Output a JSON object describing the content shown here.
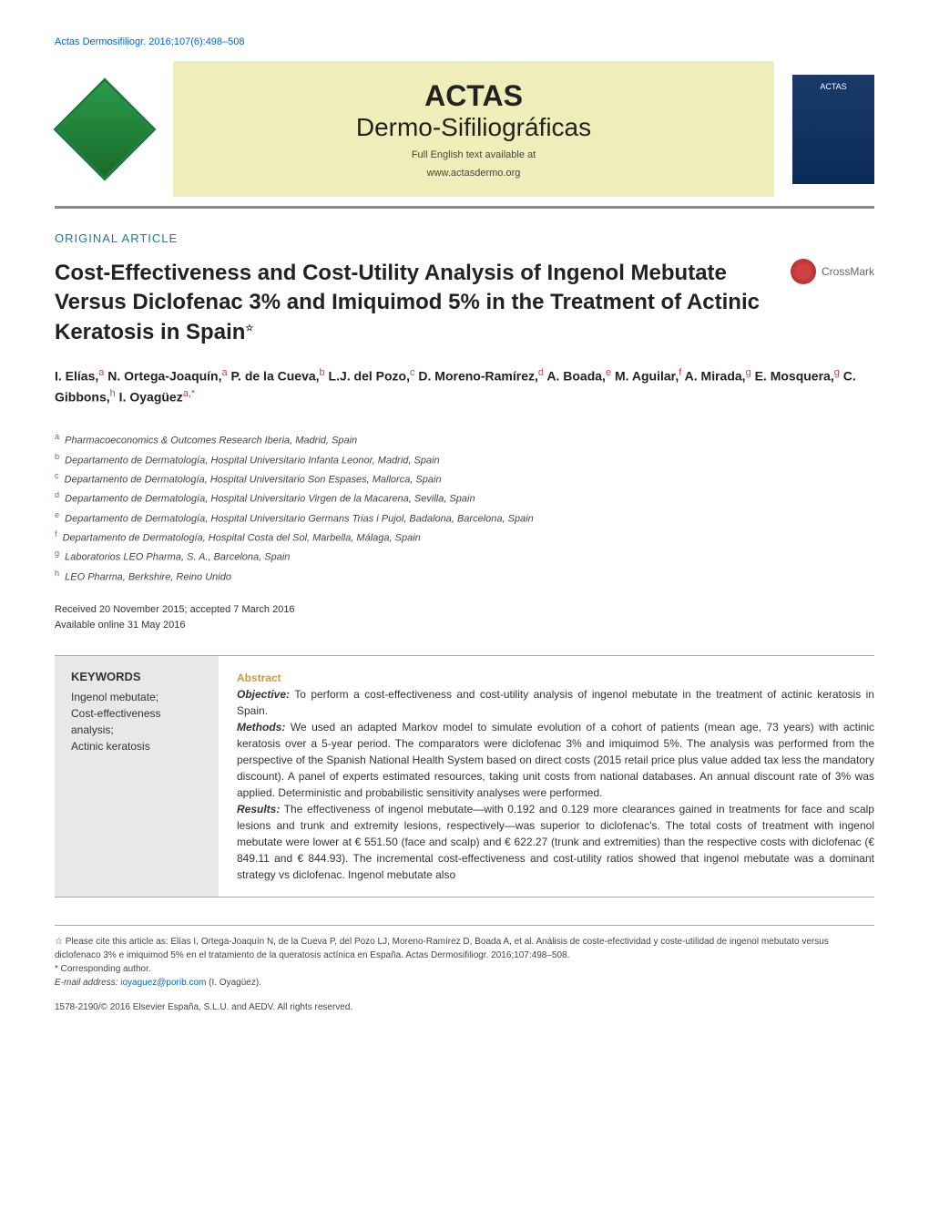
{
  "citation_link": "Actas Dermosifiliogr. 2016;107(6):498–508",
  "journal": {
    "title_line1": "ACTAS",
    "title_line2": "Dermo-Sifiliográficas",
    "note_line1": "Full English text available at",
    "note_line2": "www.actasdermo.org",
    "cover_label": "ACTAS"
  },
  "section_label": "ORIGINAL ARTICLE",
  "article_title": "Cost-Effectiveness and Cost-Utility Analysis of Ingenol Mebutate Versus Diclofenac 3% and Imiquimod 5% in the Treatment of Actinic Keratosis in Spain",
  "title_star": "☆",
  "crossmark_label": "CrossMark",
  "authors_html": "I. Elías,<sup>a</sup> N. Ortega-Joaquín,<sup>a</sup> P. de la Cueva,<sup>b</sup> L.J. del Pozo,<sup>c</sup> D. Moreno-Ramírez,<sup>d</sup> A. Boada,<sup>e</sup> M. Aguilar,<sup>f</sup> A. Mirada,<sup>g</sup> E. Mosquera,<sup>g</sup> C. Gibbons,<sup>h</sup> I. Oyagüez<sup>a,*</sup>",
  "affiliations": [
    {
      "sup": "a",
      "text": "Pharmacoeconomics & Outcomes Research Iberia, Madrid, Spain"
    },
    {
      "sup": "b",
      "text": "Departamento de Dermatología, Hospital Universitario Infanta Leonor, Madrid, Spain"
    },
    {
      "sup": "c",
      "text": "Departamento de Dermatología, Hospital Universitario Son Espases, Mallorca, Spain"
    },
    {
      "sup": "d",
      "text": "Departamento de Dermatología, Hospital Universitario Virgen de la Macarena, Sevilla, Spain"
    },
    {
      "sup": "e",
      "text": "Departamento de Dermatología, Hospital Universitario Germans Trias i Pujol, Badalona, Barcelona, Spain"
    },
    {
      "sup": "f",
      "text": "Departamento de Dermatología, Hospital Costa del Sol, Marbella, Málaga, Spain"
    },
    {
      "sup": "g",
      "text": "Laboratorios LEO Pharma, S. A., Barcelona, Spain"
    },
    {
      "sup": "h",
      "text": "LEO Pharma, Berkshire, Reino Unido"
    }
  ],
  "dates": {
    "received_accepted": "Received 20 November 2015; accepted 7 March 2016",
    "online": "Available online 31 May 2016"
  },
  "keywords": {
    "heading": "KEYWORDS",
    "list": "Ingenol mebutate;\nCost-effectiveness analysis;\nActinic keratosis"
  },
  "abstract": {
    "label": "Abstract",
    "objective_label": "Objective:",
    "objective_text": "To perform a cost-effectiveness and cost-utility analysis of ingenol mebutate in the treatment of actinic keratosis in Spain.",
    "methods_label": "Methods:",
    "methods_text": "We used an adapted Markov model to simulate evolution of a cohort of patients (mean age, 73 years) with actinic keratosis over a 5-year period. The comparators were diclofenac 3% and imiquimod 5%. The analysis was performed from the perspective of the Spanish National Health System based on direct costs (2015 retail price plus value added tax less the mandatory discount). A panel of experts estimated resources, taking unit costs from national databases. An annual discount rate of 3% was applied. Deterministic and probabilistic sensitivity analyses were performed.",
    "results_label": "Results:",
    "results_text": "The effectiveness of ingenol mebutate—with 0.192 and 0.129 more clearances gained in treatments for face and scalp lesions and trunk and extremity lesions, respectively—was superior to diclofenac's. The total costs of treatment with ingenol mebutate were lower at € 551.50 (face and scalp) and € 622.27 (trunk and extremities) than the respective costs with diclofenac (€ 849.11 and € 844.93). The incremental cost-effectiveness and cost-utility ratios showed that ingenol mebutate was a dominant strategy vs diclofenac. Ingenol mebutate also"
  },
  "footer": {
    "citation_note": "☆ Please cite this article as: Elías I, Ortega-Joaquín N, de la Cueva P, del Pozo LJ, Moreno-Ramírez D, Boada A, et al. Análisis de coste-efectividad y coste-utilidad de ingenol mebutato versus diclofenaco 3% e imiquimod 5% en el tratamiento de la queratosis actínica en España. Actas Dermosifiliogr. 2016;107:498–508.",
    "corresponding": "* Corresponding author.",
    "email_label": "E-mail address:",
    "email": "ioyaguez@porib.com",
    "email_name": "(I. Oyagüez).",
    "copyright": "1578-2190/© 2016 Elsevier España, S.L.U. and AEDV. All rights reserved."
  },
  "colors": {
    "link_blue": "#0066cc",
    "section_teal": "#1a7a9a",
    "sup_red": "#cc4444",
    "abstract_gold": "#cc9944",
    "keywords_bg": "#e8e8e8",
    "journal_bg": "#f0eeb8"
  }
}
